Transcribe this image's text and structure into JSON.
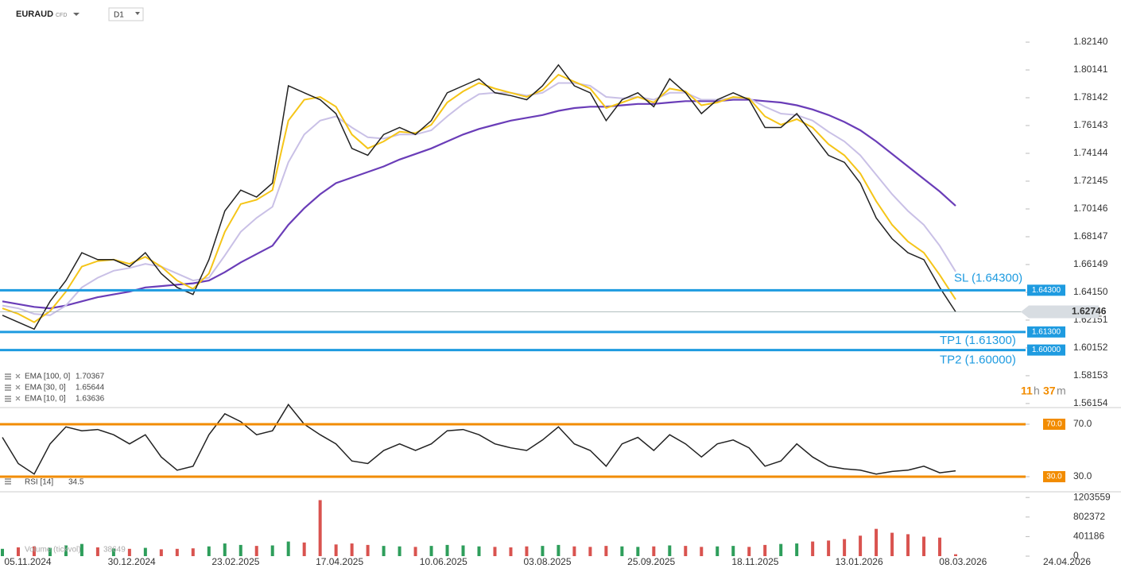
{
  "header": {
    "symbol": "EURAUD",
    "instrument_type": "CFD",
    "timeframe": "D1"
  },
  "chart_data": [
    {
      "type": "line",
      "last_label": "1.62746",
      "color": "#222222",
      "values": [
        1.625,
        1.62,
        1.615,
        1.635,
        1.65,
        1.67,
        1.665,
        1.665,
        1.66,
        1.67,
        1.655,
        1.645,
        1.64,
        1.665,
        1.7,
        1.715,
        1.71,
        1.72,
        1.79,
        1.785,
        1.78,
        1.77,
        1.745,
        1.74,
        1.755,
        1.76,
        1.755,
        1.765,
        1.785,
        1.79,
        1.795,
        1.785,
        1.783,
        1.78,
        1.79,
        1.805,
        1.79,
        1.785,
        1.765,
        1.78,
        1.785,
        1.775,
        1.795,
        1.785,
        1.77,
        1.78,
        1.785,
        1.78,
        1.76,
        1.76,
        1.77,
        1.755,
        1.74,
        1.735,
        1.72,
        1.695,
        1.68,
        1.67,
        1.665,
        1.645,
        1.62746
      ],
      "series": [
        {
          "name": "EMA [100, 0]",
          "color": "#6a3db8",
          "width": 2.2,
          "values": [
            1.635,
            1.633,
            1.631,
            1.63,
            1.632,
            1.635,
            1.638,
            1.64,
            1.642,
            1.645,
            1.646,
            1.647,
            1.648,
            1.65,
            1.656,
            1.663,
            1.669,
            1.675,
            1.69,
            1.702,
            1.712,
            1.72,
            1.724,
            1.728,
            1.732,
            1.737,
            1.741,
            1.745,
            1.75,
            1.755,
            1.759,
            1.762,
            1.765,
            1.767,
            1.769,
            1.772,
            1.774,
            1.775,
            1.775,
            1.776,
            1.777,
            1.777,
            1.778,
            1.779,
            1.779,
            1.779,
            1.78,
            1.78,
            1.779,
            1.778,
            1.776,
            1.773,
            1.769,
            1.764,
            1.758,
            1.75,
            1.741,
            1.732,
            1.723,
            1.714,
            1.70367
          ]
        },
        {
          "name": "EMA [30, 0]",
          "color": "#c9c0e6",
          "width": 2,
          "values": [
            1.632,
            1.63,
            1.626,
            1.625,
            1.632,
            1.645,
            1.652,
            1.657,
            1.659,
            1.662,
            1.66,
            1.655,
            1.65,
            1.652,
            1.668,
            1.685,
            1.695,
            1.703,
            1.735,
            1.755,
            1.765,
            1.768,
            1.76,
            1.753,
            1.752,
            1.755,
            1.755,
            1.758,
            1.768,
            1.777,
            1.784,
            1.785,
            1.785,
            1.783,
            1.785,
            1.792,
            1.792,
            1.79,
            1.782,
            1.781,
            1.782,
            1.78,
            1.785,
            1.785,
            1.78,
            1.78,
            1.781,
            1.781,
            1.775,
            1.77,
            1.769,
            1.765,
            1.757,
            1.75,
            1.74,
            1.726,
            1.712,
            1.7,
            1.69,
            1.675,
            1.65644
          ]
        },
        {
          "name": "EMA [10, 0]",
          "color": "#f5c518",
          "width": 2,
          "values": [
            1.63,
            1.626,
            1.62,
            1.628,
            1.642,
            1.66,
            1.664,
            1.665,
            1.662,
            1.667,
            1.66,
            1.65,
            1.644,
            1.655,
            1.685,
            1.705,
            1.708,
            1.715,
            1.765,
            1.78,
            1.782,
            1.775,
            1.755,
            1.745,
            1.75,
            1.757,
            1.756,
            1.762,
            1.778,
            1.786,
            1.792,
            1.788,
            1.785,
            1.782,
            1.787,
            1.798,
            1.793,
            1.788,
            1.774,
            1.778,
            1.782,
            1.778,
            1.788,
            1.786,
            1.776,
            1.778,
            1.782,
            1.781,
            1.768,
            1.762,
            1.766,
            1.76,
            1.748,
            1.74,
            1.727,
            1.707,
            1.69,
            1.678,
            1.67,
            1.654,
            1.63636
          ]
        }
      ],
      "series_value_labels": [
        "1.70367",
        "1.65644",
        "1.63636"
      ],
      "levels": [
        {
          "name": "SL (1.64300)",
          "value": 1.643,
          "label": "1.64300",
          "color": "#1e9be0"
        },
        {
          "name": "TP1 (1.61300)",
          "value": 1.613,
          "label": "1.61300",
          "color": "#1e9be0"
        },
        {
          "name": "TP2 (1.60000)",
          "value": 1.6,
          "label": "1.60000",
          "color": "#1e9be0"
        }
      ],
      "ylim": [
        1.5592,
        1.8517
      ],
      "yticks": [
        {
          "value": 1.8214,
          "label": "1.82140"
        },
        {
          "value": 1.80141,
          "label": "1.80141"
        },
        {
          "value": 1.78142,
          "label": "1.78142"
        },
        {
          "value": 1.76143,
          "label": "1.76143"
        },
        {
          "value": 1.74144,
          "label": "1.74144"
        },
        {
          "value": 1.72145,
          "label": "1.72145"
        },
        {
          "value": 1.70146,
          "label": "1.70146"
        },
        {
          "value": 1.68147,
          "label": "1.68147"
        },
        {
          "value": 1.66149,
          "label": "1.66149"
        },
        {
          "value": 1.6415,
          "label": "1.64150"
        },
        {
          "value": 1.62151,
          "label": "1.62151"
        },
        {
          "value": 1.60152,
          "label": "1.60152"
        },
        {
          "value": 1.58153,
          "label": "1.58153"
        },
        {
          "value": 1.56154,
          "label": "1.56154"
        }
      ],
      "countdown": {
        "hours": 11,
        "hours_unit": "h",
        "minutes": 37,
        "minutes_unit": "m"
      }
    },
    {
      "type": "line",
      "name": "RSI [14]",
      "color": "#222222",
      "values": [
        60,
        40,
        32,
        55,
        68,
        65,
        66,
        62,
        55,
        62,
        45,
        35,
        38,
        62,
        78,
        72,
        62,
        65,
        85,
        70,
        62,
        55,
        42,
        40,
        50,
        55,
        50,
        55,
        65,
        66,
        62,
        55,
        52,
        50,
        58,
        68,
        55,
        50,
        38,
        55,
        60,
        50,
        62,
        55,
        45,
        55,
        58,
        52,
        38,
        42,
        55,
        45,
        38,
        36,
        35,
        32,
        34,
        35,
        38,
        33,
        34.5
      ],
      "levels": [
        {
          "value": 70,
          "label": "70.0",
          "color": "#f28c00"
        },
        {
          "value": 30,
          "label": "30.0",
          "color": "#f28c00"
        }
      ],
      "ylim": [
        19.1,
        82.7
      ],
      "yticks": [
        {
          "value": 70,
          "label": "70.0"
        },
        {
          "value": 30,
          "label": "30.0"
        }
      ]
    },
    {
      "type": "bar",
      "name": "Volume (tickvol)",
      "up_color": "#2e9e5b",
      "down_color": "#d9534f",
      "values": [
        150000,
        180000,
        200000,
        170000,
        220000,
        250000,
        180000,
        160000,
        150000,
        170000,
        140000,
        150000,
        160000,
        200000,
        260000,
        230000,
        210000,
        220000,
        300000,
        280000,
        1150000,
        240000,
        260000,
        230000,
        210000,
        200000,
        190000,
        210000,
        230000,
        220000,
        200000,
        190000,
        180000,
        200000,
        210000,
        230000,
        200000,
        190000,
        210000,
        200000,
        190000,
        200000,
        220000,
        210000,
        190000,
        200000,
        210000,
        190000,
        230000,
        250000,
        260000,
        300000,
        320000,
        350000,
        420000,
        560000,
        480000,
        450000,
        400000,
        380000,
        38649
      ],
      "ylim": [
        0,
        1272000
      ],
      "yticks": [
        0,
        401186,
        802372,
        1203559
      ],
      "xticks": [
        "05.11.2024",
        "30.12.2024",
        "23.02.2025",
        "17.04.2025",
        "10.06.2025",
        "03.08.2025",
        "25.09.2025",
        "18.11.2025",
        "13.01.2026",
        "08.03.2026",
        "24.04.2026"
      ]
    }
  ]
}
